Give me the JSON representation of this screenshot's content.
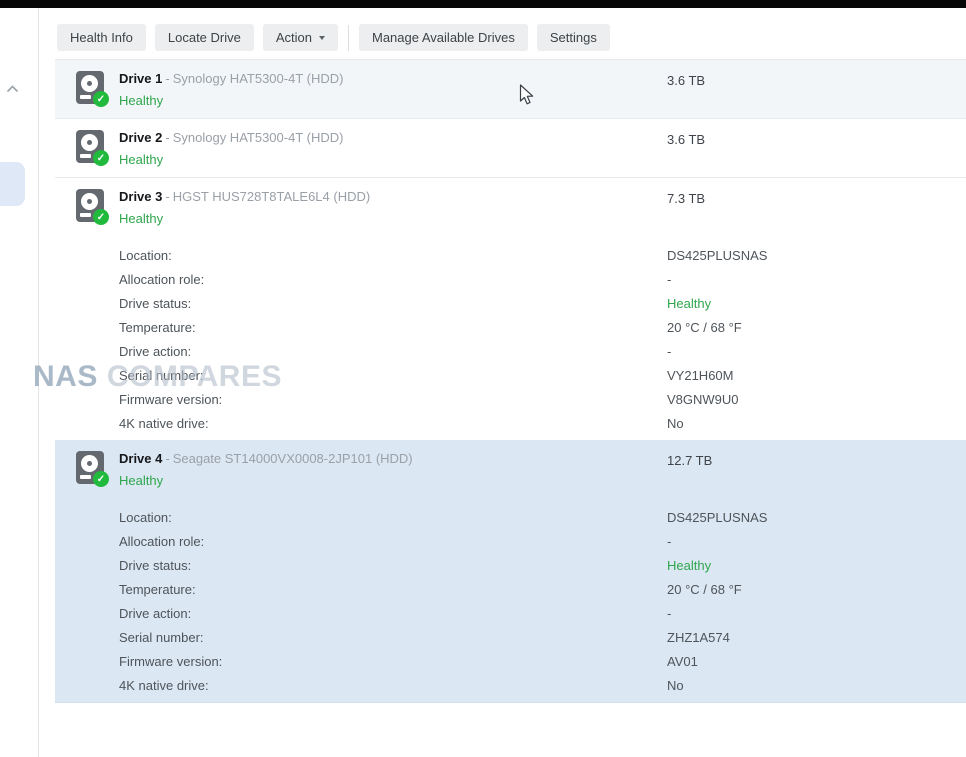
{
  "colors": {
    "selected_row_bg": "#dbe7f3",
    "alt_row_bg": "#f3f6f9",
    "healthy_green": "#2fa64d",
    "button_bg": "#eceeef",
    "badge_green": "#21ba3d"
  },
  "toolbar": {
    "buttons": [
      {
        "label": "Health Info",
        "dropdown": false,
        "separator_before": false
      },
      {
        "label": "Locate Drive",
        "dropdown": false,
        "separator_before": false
      },
      {
        "label": "Action",
        "dropdown": true,
        "separator_before": false
      },
      {
        "label": "Manage Available Drives",
        "dropdown": false,
        "separator_before": true
      },
      {
        "label": "Settings",
        "dropdown": false,
        "separator_before": false
      }
    ]
  },
  "drive_list": {
    "name_model_separator": "-",
    "drives": [
      {
        "name": "Drive 1",
        "model": "Synology HAT5300-4T (HDD)",
        "status": "Healthy",
        "size": "3.6 TB",
        "expanded": false,
        "selected": false,
        "details": []
      },
      {
        "name": "Drive 2",
        "model": "Synology HAT5300-4T (HDD)",
        "status": "Healthy",
        "size": "3.6 TB",
        "expanded": false,
        "selected": false,
        "details": []
      },
      {
        "name": "Drive 3",
        "model": "HGST HUS728T8TALE6L4 (HDD)",
        "status": "Healthy",
        "size": "7.3 TB",
        "expanded": true,
        "selected": false,
        "details": [
          {
            "label": "Location:",
            "value": "DS425PLUSNAS",
            "healthy": false
          },
          {
            "label": "Allocation role:",
            "value": "-",
            "healthy": false
          },
          {
            "label": "Drive status:",
            "value": "Healthy",
            "healthy": true
          },
          {
            "label": "Temperature:",
            "value": "20 °C / 68 °F",
            "healthy": false
          },
          {
            "label": "Drive action:",
            "value": "-",
            "healthy": false
          },
          {
            "label": "Serial number:",
            "value": "VY21H60M",
            "healthy": false
          },
          {
            "label": "Firmware version:",
            "value": "V8GNW9U0",
            "healthy": false
          },
          {
            "label": "4K native drive:",
            "value": "No",
            "healthy": false
          }
        ]
      },
      {
        "name": "Drive 4",
        "model": "Seagate ST14000VX0008-2JP101 (HDD)",
        "status": "Healthy",
        "size": "12.7 TB",
        "expanded": true,
        "selected": true,
        "details": [
          {
            "label": "Location:",
            "value": "DS425PLUSNAS",
            "healthy": false
          },
          {
            "label": "Allocation role:",
            "value": "-",
            "healthy": false
          },
          {
            "label": "Drive status:",
            "value": "Healthy",
            "healthy": true
          },
          {
            "label": "Temperature:",
            "value": "20 °C / 68 °F",
            "healthy": false
          },
          {
            "label": "Drive action:",
            "value": "-",
            "healthy": false
          },
          {
            "label": "Serial number:",
            "value": "ZHZ1A574",
            "healthy": false
          },
          {
            "label": "Firmware version:",
            "value": "AV01",
            "healthy": false
          },
          {
            "label": "4K native drive:",
            "value": "No",
            "healthy": false
          }
        ]
      }
    ]
  },
  "watermark": {
    "part1": "NAS",
    "part2": "COMPARES"
  }
}
